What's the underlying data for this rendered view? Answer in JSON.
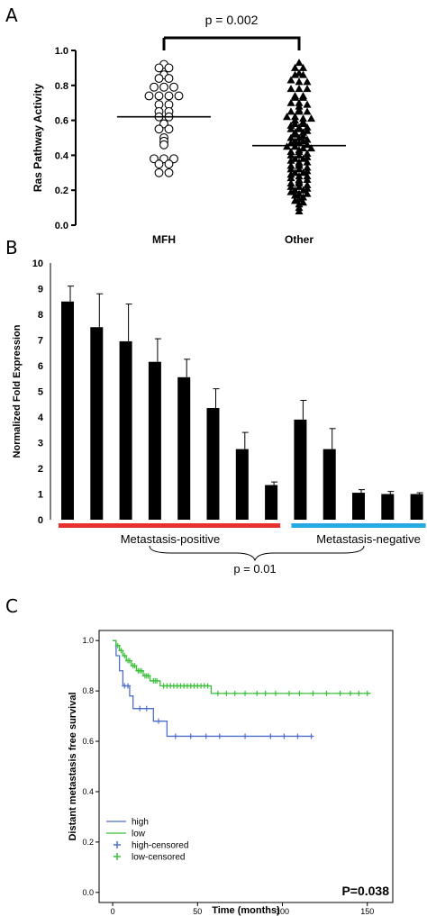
{
  "chart_data": [
    {
      "panel": "A",
      "type": "scatter",
      "ylabel": "Ras  Pathway Activity",
      "ylim": [
        0,
        1.0
      ],
      "yticks": [
        "0.0",
        "0.2",
        "0.4",
        "0.6",
        "0.8",
        "1.0"
      ],
      "categories": [
        "MFH",
        "Other"
      ],
      "significance": "p = 0.002",
      "series": [
        {
          "name": "MFH",
          "marker": "open-circle",
          "mean": 0.62,
          "values": [
            0.92,
            0.9,
            0.9,
            0.86,
            0.84,
            0.84,
            0.79,
            0.79,
            0.79,
            0.74,
            0.74,
            0.74,
            0.74,
            0.69,
            0.69,
            0.65,
            0.65,
            0.62,
            0.62,
            0.58,
            0.55,
            0.55,
            0.5,
            0.48,
            0.46,
            0.38,
            0.38,
            0.38,
            0.35,
            0.35,
            0.3,
            0.3
          ]
        },
        {
          "name": "Other",
          "marker": "filled-triangle",
          "mean": 0.455,
          "values": [
            0.93,
            0.9,
            0.9,
            0.87,
            0.86,
            0.86,
            0.83,
            0.82,
            0.82,
            0.78,
            0.78,
            0.78,
            0.74,
            0.74,
            0.73,
            0.73,
            0.7,
            0.7,
            0.69,
            0.68,
            0.66,
            0.65,
            0.65,
            0.65,
            0.62,
            0.62,
            0.61,
            0.61,
            0.6,
            0.59,
            0.58,
            0.58,
            0.57,
            0.56,
            0.56,
            0.55,
            0.55,
            0.54,
            0.53,
            0.53,
            0.52,
            0.51,
            0.5,
            0.5,
            0.49,
            0.48,
            0.48,
            0.47,
            0.47,
            0.46,
            0.45,
            0.45,
            0.44,
            0.44,
            0.43,
            0.42,
            0.42,
            0.41,
            0.4,
            0.4,
            0.39,
            0.38,
            0.38,
            0.37,
            0.36,
            0.36,
            0.35,
            0.34,
            0.34,
            0.33,
            0.32,
            0.32,
            0.31,
            0.3,
            0.3,
            0.29,
            0.28,
            0.28,
            0.27,
            0.26,
            0.26,
            0.25,
            0.24,
            0.24,
            0.23,
            0.22,
            0.22,
            0.21,
            0.2,
            0.2,
            0.19,
            0.18,
            0.18,
            0.17,
            0.16,
            0.15,
            0.14,
            0.13,
            0.12,
            0.1,
            0.08
          ]
        }
      ]
    },
    {
      "panel": "B",
      "type": "bar",
      "ylabel": "Normalized Fold Expression",
      "ylim": [
        0,
        10
      ],
      "yticks": [
        "0",
        "1",
        "2",
        "3",
        "4",
        "5",
        "6",
        "7",
        "8",
        "9",
        "10"
      ],
      "values": [
        8.5,
        7.5,
        6.95,
        6.15,
        5.55,
        4.35,
        2.75,
        1.35,
        3.9,
        2.75,
        1.05,
        1.0,
        1.0
      ],
      "errors": [
        0.6,
        1.3,
        1.45,
        0.9,
        0.7,
        0.75,
        0.65,
        0.12,
        0.75,
        0.8,
        0.12,
        0.1,
        0.05
      ],
      "groups": [
        {
          "label": "Metastasis-positive",
          "color": "#e8312f",
          "count": 8
        },
        {
          "label": "Metastasis-negative",
          "color": "#27a9e1",
          "count": 5
        }
      ],
      "annotation": "p = 0.01"
    },
    {
      "panel": "C",
      "type": "line",
      "xlabel": "Time (months)",
      "ylabel": "Distant metastasis free survival",
      "xlim": [
        -8,
        165
      ],
      "ylim": [
        -0.04,
        1.04
      ],
      "xticks": [
        "0",
        "50",
        "100",
        "150"
      ],
      "yticks": [
        "0.0",
        "0.2",
        "0.4",
        "0.6",
        "0.8",
        "1.0"
      ],
      "pvalue": "P=0.038",
      "legend": [
        "high",
        "low",
        "high-censored",
        "low-censored"
      ],
      "series": [
        {
          "name": "high",
          "color": "#4e6fcb",
          "steps": [
            [
              0,
              1.0
            ],
            [
              2,
              0.94
            ],
            [
              4,
              0.88
            ],
            [
              6,
              0.82
            ],
            [
              10,
              0.78
            ],
            [
              12,
              0.73
            ],
            [
              24,
              0.68
            ],
            [
              32,
              0.62
            ],
            [
              118,
              0.62
            ]
          ],
          "censored": [
            [
              7,
              0.82
            ],
            [
              9,
              0.82
            ],
            [
              16,
              0.73
            ],
            [
              20,
              0.73
            ],
            [
              27,
              0.68
            ],
            [
              37,
              0.62
            ],
            [
              46,
              0.62
            ],
            [
              55,
              0.62
            ],
            [
              63,
              0.62
            ],
            [
              78,
              0.62
            ],
            [
              93,
              0.62
            ],
            [
              101,
              0.62
            ],
            [
              109,
              0.62
            ],
            [
              117,
              0.62
            ]
          ]
        },
        {
          "name": "low",
          "color": "#3bbf3b",
          "steps": [
            [
              0,
              1.0
            ],
            [
              2,
              0.98
            ],
            [
              4,
              0.96
            ],
            [
              6,
              0.94
            ],
            [
              8,
              0.92
            ],
            [
              11,
              0.9
            ],
            [
              14,
              0.88
            ],
            [
              18,
              0.86
            ],
            [
              22,
              0.84
            ],
            [
              28,
              0.82
            ],
            [
              58,
              0.79
            ],
            [
              152,
              0.79
            ]
          ],
          "censored": [
            [
              3,
              0.98
            ],
            [
              5,
              0.96
            ],
            [
              7,
              0.94
            ],
            [
              9,
              0.92
            ],
            [
              10,
              0.92
            ],
            [
              12,
              0.9
            ],
            [
              13,
              0.9
            ],
            [
              15,
              0.88
            ],
            [
              16,
              0.88
            ],
            [
              17,
              0.88
            ],
            [
              19,
              0.86
            ],
            [
              20,
              0.86
            ],
            [
              21,
              0.86
            ],
            [
              24,
              0.84
            ],
            [
              25,
              0.84
            ],
            [
              26,
              0.84
            ],
            [
              30,
              0.82
            ],
            [
              32,
              0.82
            ],
            [
              34,
              0.82
            ],
            [
              36,
              0.82
            ],
            [
              38,
              0.82
            ],
            [
              40,
              0.82
            ],
            [
              42,
              0.82
            ],
            [
              44,
              0.82
            ],
            [
              46,
              0.82
            ],
            [
              48,
              0.82
            ],
            [
              50,
              0.82
            ],
            [
              52,
              0.82
            ],
            [
              54,
              0.82
            ],
            [
              56,
              0.82
            ],
            [
              62,
              0.79
            ],
            [
              67,
              0.79
            ],
            [
              72,
              0.79
            ],
            [
              78,
              0.79
            ],
            [
              85,
              0.79
            ],
            [
              90,
              0.79
            ],
            [
              96,
              0.79
            ],
            [
              104,
              0.79
            ],
            [
              110,
              0.79
            ],
            [
              118,
              0.79
            ],
            [
              126,
              0.79
            ],
            [
              134,
              0.79
            ],
            [
              140,
              0.79
            ],
            [
              145,
              0.79
            ],
            [
              150,
              0.79
            ]
          ]
        }
      ]
    }
  ]
}
